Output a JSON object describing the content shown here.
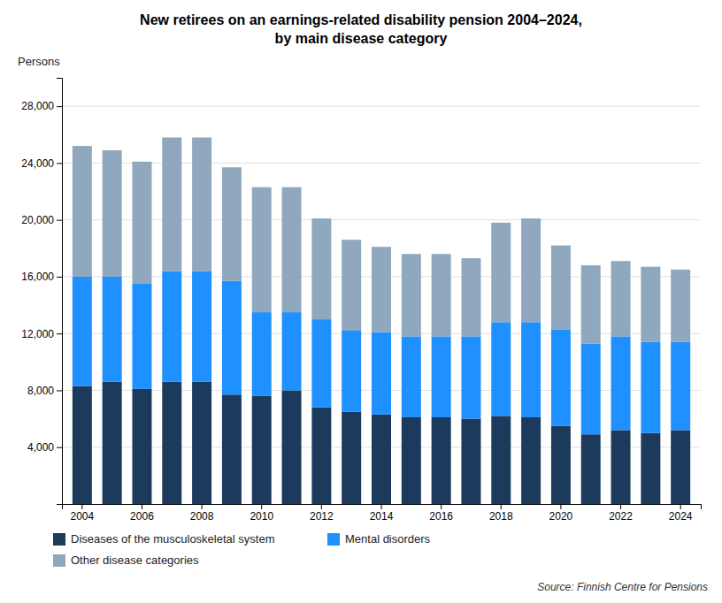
{
  "chart_data": {
    "type": "bar",
    "stacked": true,
    "title": "New retirees on an earnings-related disability pension 2004–2024,",
    "subtitle": "by main disease category",
    "ylabel": "Persons",
    "annotations": [
      "Source: Finnish Centre for Pensions"
    ],
    "categories": [
      "2004",
      null,
      "2006",
      null,
      "2008",
      null,
      "2010",
      null,
      "2012",
      null,
      "2014",
      null,
      "2016",
      null,
      "2018",
      null,
      "2020",
      null,
      "2022",
      null,
      "2024"
    ],
    "series": [
      {
        "name": "Diseases of the musculoskeletal system",
        "color": "#1b3a5c",
        "values": [
          8300,
          8600,
          8100,
          8600,
          8600,
          7700,
          7600,
          8000,
          6800,
          6500,
          6300,
          6100,
          6100,
          6000,
          6200,
          6100,
          5500,
          4900,
          5200,
          5000,
          5200
        ]
      },
      {
        "name": "Mental disorders",
        "color": "#1e90ff",
        "values": [
          7700,
          7400,
          7400,
          7800,
          7800,
          8000,
          5900,
          5500,
          6200,
          5700,
          5800,
          5700,
          5700,
          5800,
          6600,
          6700,
          6800,
          6400,
          6600,
          6400,
          6200
        ]
      },
      {
        "name": "Other disease categories",
        "color": "#8fa8be",
        "values": [
          9200,
          8900,
          8600,
          9400,
          9400,
          8000,
          8800,
          8800,
          7100,
          6400,
          6000,
          5800,
          5800,
          5500,
          7000,
          7300,
          5900,
          5500,
          5300,
          5300,
          5100
        ]
      }
    ],
    "ylim": [
      0,
      30000
    ],
    "yticks": [
      {
        "value": 4000,
        "label": "4,000"
      },
      {
        "value": 8000,
        "label": "8,000"
      },
      {
        "value": 12000,
        "label": "12,000"
      },
      {
        "value": 16000,
        "label": "16,000"
      },
      {
        "value": 20000,
        "label": "20,000"
      },
      {
        "value": 24000,
        "label": "24,000"
      },
      {
        "value": 28000,
        "label": "28,000"
      }
    ],
    "grid": true,
    "legend": "bottom"
  }
}
